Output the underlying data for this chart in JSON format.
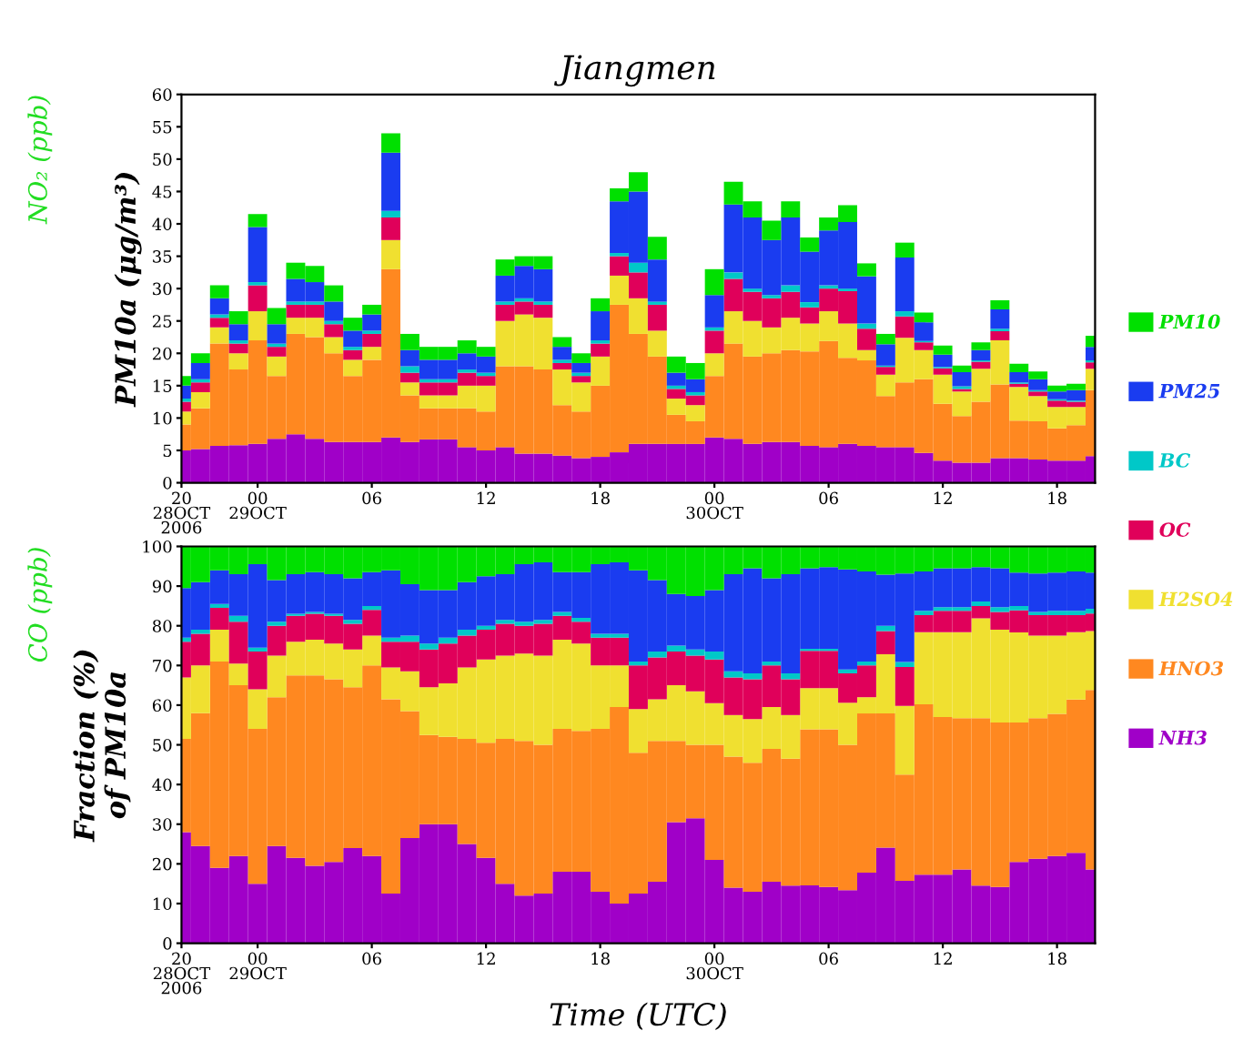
{
  "chart_data": [
    {
      "type": "bar",
      "stacked": true,
      "title": "Jiangmen",
      "ylabel": "PM10a (μg/m³)",
      "legend": "right",
      "annotations": [
        "NO₂ (ppb)"
      ],
      "x": [
        "2006-10-28T20:00",
        "2006-10-28T21:00",
        "2006-10-28T22:00",
        "2006-10-28T23:00",
        "2006-10-29T00:00",
        "2006-10-29T01:00",
        "2006-10-29T02:00",
        "2006-10-29T03:00",
        "2006-10-29T04:00",
        "2006-10-29T05:00",
        "2006-10-29T06:00",
        "2006-10-29T07:00",
        "2006-10-29T08:00",
        "2006-10-29T09:00",
        "2006-10-29T10:00",
        "2006-10-29T11:00",
        "2006-10-29T12:00",
        "2006-10-29T13:00",
        "2006-10-29T14:00",
        "2006-10-29T15:00",
        "2006-10-29T16:00",
        "2006-10-29T17:00",
        "2006-10-29T18:00",
        "2006-10-29T19:00",
        "2006-10-29T20:00",
        "2006-10-29T21:00",
        "2006-10-29T22:00",
        "2006-10-29T23:00",
        "2006-10-30T00:00",
        "2006-10-30T01:00",
        "2006-10-30T02:00",
        "2006-10-30T03:00",
        "2006-10-30T04:00",
        "2006-10-30T05:00",
        "2006-10-30T06:00",
        "2006-10-30T07:00",
        "2006-10-30T08:00",
        "2006-10-30T09:00",
        "2006-10-30T10:00",
        "2006-10-30T11:00",
        "2006-10-30T12:00",
        "2006-10-30T13:00",
        "2006-10-30T14:00",
        "2006-10-30T15:00",
        "2006-10-30T16:00",
        "2006-10-30T17:00",
        "2006-10-30T18:00",
        "2006-10-30T19:00",
        "2006-10-30T20:00"
      ],
      "xlim": [
        "2006-10-28T20:00",
        "2006-10-30T20:00"
      ],
      "xticks": [
        {
          "value": "2006-10-28T20:00",
          "label": "20\n28OCT\n2006"
        },
        {
          "value": "2006-10-29T00:00",
          "label": "00\n29OCT"
        },
        {
          "value": "2006-10-29T06:00",
          "label": "06"
        },
        {
          "value": "2006-10-29T12:00",
          "label": "12"
        },
        {
          "value": "2006-10-29T18:00",
          "label": "18"
        },
        {
          "value": "2006-10-30T00:00",
          "label": "00\n30OCT"
        },
        {
          "value": "2006-10-30T06:00",
          "label": "06"
        },
        {
          "value": "2006-10-30T12:00",
          "label": "12"
        },
        {
          "value": "2006-10-30T18:00",
          "label": "18"
        }
      ],
      "ylim": [
        0,
        60
      ],
      "yticks": [
        0,
        5,
        10,
        15,
        20,
        25,
        30,
        35,
        40,
        45,
        50,
        55,
        60
      ],
      "series": [
        {
          "name": "NH3",
          "color": "#a000c8",
          "values": [
            5,
            5.2,
            5.7,
            5.8,
            6,
            6.8,
            7.5,
            6.8,
            6.3,
            6.3,
            6.3,
            7,
            6.3,
            6.7,
            6.7,
            5.5,
            5,
            5.5,
            4.5,
            4.5,
            4.2,
            3.8,
            4,
            4.7,
            6,
            6,
            6,
            6,
            7,
            6.8,
            6,
            6.3,
            6.3,
            5.7,
            5.5,
            6,
            5.7,
            5.5,
            5.5,
            4.6,
            3.4,
            3.1,
            3.1,
            3.8,
            3.8,
            3.6,
            3.4,
            3.4,
            4.1
          ]
        },
        {
          "name": "HNO3",
          "color": "#ff8820",
          "values": [
            4,
            6.3,
            15.8,
            11.7,
            16,
            9.7,
            15.5,
            15.7,
            13.7,
            10.2,
            12.7,
            26,
            7.2,
            4.8,
            4.8,
            6,
            6,
            12.5,
            13.5,
            13,
            7.8,
            7.2,
            11,
            22.8,
            17,
            13.5,
            4.5,
            3.5,
            9.5,
            14.7,
            13.5,
            13.7,
            14.2,
            14.6,
            16.4,
            13.3,
            13.2,
            7.9,
            10,
            11.4,
            8.8,
            7.2,
            9.4,
            11.4,
            5.8,
            5.9,
            5,
            5.5,
            10.2
          ]
        },
        {
          "name": "H2SO4",
          "color": "#f0e030",
          "values": [
            2,
            2.5,
            2.5,
            2.5,
            4.5,
            3,
            2.5,
            3,
            2.5,
            2.5,
            2,
            4.5,
            2,
            2,
            2,
            3.5,
            4,
            7,
            8,
            8,
            5.5,
            4.5,
            4.5,
            4.5,
            5.5,
            4,
            2.5,
            2.5,
            3.5,
            5,
            5.5,
            4,
            5,
            4.3,
            4.6,
            5.3,
            1.6,
            3.3,
            6.9,
            4.5,
            4.5,
            3.8,
            5.1,
            6.8,
            5.2,
            3.9,
            3.3,
            2.8,
            3.3
          ]
        },
        {
          "name": "OC",
          "color": "#e0005a",
          "values": [
            1.5,
            1.5,
            1.5,
            1.5,
            4,
            1.5,
            2,
            2,
            2,
            1.5,
            2,
            3.5,
            1.5,
            2,
            2,
            2,
            1.5,
            2.5,
            2,
            2,
            1,
            1,
            2,
            3,
            4,
            4,
            1.5,
            1.5,
            3.5,
            5,
            4.5,
            4.5,
            4,
            2.5,
            3.5,
            5,
            3.3,
            1.2,
            3.3,
            1.2,
            1,
            0.4,
            1.1,
            1.4,
            0.5,
            0.7,
            1,
            0.8,
            1
          ]
        },
        {
          "name": "BC",
          "color": "#00c8c8",
          "values": [
            0.5,
            0.5,
            0.5,
            0.5,
            0.5,
            0.5,
            0.5,
            0.5,
            0.5,
            0.5,
            0.5,
            1,
            1,
            0.5,
            0.5,
            0.5,
            0.5,
            0.5,
            0.5,
            0.5,
            0.5,
            0.5,
            0.5,
            0.5,
            1.5,
            0.5,
            0.5,
            0.5,
            0.5,
            1,
            0.5,
            0.5,
            1,
            0.8,
            0.5,
            0.4,
            0.8,
            0.2,
            0.8,
            0.2,
            0.2,
            0.4,
            0.2,
            0.4,
            0.2,
            0.2,
            0.2,
            0.2,
            0.3
          ]
        },
        {
          "name": "PM25",
          "color": "#1a3cf0",
          "values": [
            2,
            2.5,
            2.5,
            2.5,
            8.5,
            3,
            3.5,
            3,
            3,
            2.5,
            2.5,
            9,
            2.5,
            3,
            3,
            2.5,
            2.5,
            4,
            5,
            5,
            2,
            1.5,
            4.5,
            8,
            11,
            6.5,
            2,
            2,
            5,
            10.5,
            11,
            8.5,
            10.5,
            7.8,
            8.5,
            10.3,
            7.3,
            3.3,
            8.3,
            2.9,
            1.9,
            2.2,
            1.6,
            3,
            1.6,
            1.7,
            1.2,
            1.6,
            2.1
          ]
        },
        {
          "name": "PM10",
          "color": "#00e000",
          "values": [
            1.5,
            1.5,
            2,
            2,
            2,
            2.5,
            2.5,
            2.5,
            2.5,
            2,
            1.5,
            3,
            2.5,
            2,
            2,
            2,
            1.5,
            2.5,
            1.5,
            2,
            1.5,
            1.5,
            2,
            2,
            3,
            3.5,
            2.5,
            2.5,
            4,
            3.5,
            2.5,
            3,
            2.5,
            2.2,
            2,
            2.6,
            2,
            1.6,
            2.3,
            1.5,
            1.4,
            1,
            1.2,
            1.4,
            1.3,
            1.2,
            0.9,
            1,
            1.7
          ]
        }
      ]
    },
    {
      "type": "bar",
      "stacked": true,
      "ylabel": "Fraction (%)\nof PM10a",
      "xlabel": "Time (UTC)",
      "annotations": [
        "CO (ppb)"
      ],
      "x": [
        "2006-10-28T20:00",
        "2006-10-28T21:00",
        "2006-10-28T22:00",
        "2006-10-28T23:00",
        "2006-10-29T00:00",
        "2006-10-29T01:00",
        "2006-10-29T02:00",
        "2006-10-29T03:00",
        "2006-10-29T04:00",
        "2006-10-29T05:00",
        "2006-10-29T06:00",
        "2006-10-29T07:00",
        "2006-10-29T08:00",
        "2006-10-29T09:00",
        "2006-10-29T10:00",
        "2006-10-29T11:00",
        "2006-10-29T12:00",
        "2006-10-29T13:00",
        "2006-10-29T14:00",
        "2006-10-29T15:00",
        "2006-10-29T16:00",
        "2006-10-29T17:00",
        "2006-10-29T18:00",
        "2006-10-29T19:00",
        "2006-10-29T20:00",
        "2006-10-29T21:00",
        "2006-10-29T22:00",
        "2006-10-29T23:00",
        "2006-10-30T00:00",
        "2006-10-30T01:00",
        "2006-10-30T02:00",
        "2006-10-30T03:00",
        "2006-10-30T04:00",
        "2006-10-30T05:00",
        "2006-10-30T06:00",
        "2006-10-30T07:00",
        "2006-10-30T08:00",
        "2006-10-30T09:00",
        "2006-10-30T10:00",
        "2006-10-30T11:00",
        "2006-10-30T12:00",
        "2006-10-30T13:00",
        "2006-10-30T14:00",
        "2006-10-30T15:00",
        "2006-10-30T16:00",
        "2006-10-30T17:00",
        "2006-10-30T18:00",
        "2006-10-30T19:00",
        "2006-10-30T20:00"
      ],
      "xlim": [
        "2006-10-28T20:00",
        "2006-10-30T20:00"
      ],
      "xticks": [
        {
          "value": "2006-10-28T20:00",
          "label": "20\n28OCT\n2006"
        },
        {
          "value": "2006-10-29T00:00",
          "label": "00\n29OCT"
        },
        {
          "value": "2006-10-29T06:00",
          "label": "06"
        },
        {
          "value": "2006-10-29T12:00",
          "label": "12"
        },
        {
          "value": "2006-10-29T18:00",
          "label": "18"
        },
        {
          "value": "2006-10-30T00:00",
          "label": "00\n30OCT"
        },
        {
          "value": "2006-10-30T06:00",
          "label": "06"
        },
        {
          "value": "2006-10-30T12:00",
          "label": "12"
        },
        {
          "value": "2006-10-30T18:00",
          "label": "18"
        }
      ],
      "ylim": [
        0,
        100
      ],
      "yticks": [
        0,
        10,
        20,
        30,
        40,
        50,
        60,
        70,
        80,
        90,
        100
      ],
      "series": [
        {
          "color": "#a000c8",
          "values": [
            28,
            24.5,
            19,
            22,
            15,
            24.5,
            21.5,
            19.5,
            20.5,
            24,
            22,
            12.5,
            26.5,
            30,
            30,
            25,
            21.5,
            15,
            12,
            12.5,
            18,
            18,
            13,
            10,
            12.5,
            15.5,
            30.5,
            31.5,
            21,
            14,
            13,
            15.5,
            14.5,
            14.6,
            14.2,
            13.4,
            17.8,
            24.1,
            15.7,
            17.3,
            17.3,
            18.6,
            14.5,
            14.2,
            20.5,
            21.3,
            22,
            22.8,
            18.6
          ]
        },
        {
          "color": "#ff8820",
          "values": [
            23.5,
            33.5,
            52,
            43,
            39,
            37.5,
            46,
            48,
            46,
            40.5,
            48,
            49,
            32,
            22.5,
            22,
            26.5,
            29,
            36.5,
            39,
            37.5,
            36,
            35.5,
            41,
            49.5,
            35.5,
            35.5,
            20.5,
            18.5,
            29,
            33,
            32.5,
            33.5,
            32,
            39.3,
            39.7,
            36.6,
            40.1,
            33.8,
            26.8,
            42.9,
            39.7,
            38.1,
            42.2,
            41.4,
            35.1,
            35.4,
            35.8,
            38.6,
            45.2
          ]
        },
        {
          "color": "#f0e030",
          "values": [
            15.5,
            12,
            8,
            5.5,
            10,
            10.5,
            8.5,
            9,
            9,
            9.5,
            7.5,
            8,
            10,
            12,
            13.5,
            18,
            21,
            21,
            22,
            22.5,
            22.5,
            22,
            16,
            10.5,
            11,
            10.5,
            14,
            13.5,
            10.5,
            10.5,
            11,
            10.5,
            11,
            10.4,
            10.4,
            10.6,
            4.1,
            14.9,
            17.3,
            18.2,
            21.4,
            21.7,
            25.2,
            23.4,
            22.7,
            20.8,
            19.7,
            17,
            14.9
          ]
        },
        {
          "color": "#e0005a",
          "values": [
            9,
            8,
            5.5,
            10.5,
            9.5,
            7.5,
            6.5,
            6.5,
            7,
            6.5,
            6.5,
            6.5,
            7.5,
            9.5,
            10,
            8,
            7.5,
            8,
            7,
            8,
            6,
            5.5,
            7,
            7,
            11,
            10.5,
            8.5,
            9,
            11,
            9.5,
            10,
            10.5,
            9,
            9.4,
            9.4,
            7.4,
            8,
            5.9,
            9.8,
            4.3,
            5.4,
            5.4,
            3.1,
            4.5,
            5.6,
            5.2,
            5.2,
            4.3,
            4.4
          ]
        },
        {
          "color": "#00c8c8",
          "values": [
            1,
            1,
            1,
            1.5,
            1,
            1,
            0.5,
            0.5,
            0.5,
            1,
            1,
            1,
            1.5,
            1.5,
            1.5,
            1.5,
            1,
            1,
            1,
            1,
            1,
            1,
            1,
            1,
            1,
            1.5,
            1.5,
            1.5,
            2,
            1.5,
            1.5,
            1,
            1.5,
            0.5,
            0.5,
            1,
            1,
            1.3,
            1.3,
            1.1,
            0.9,
            0.9,
            1.1,
            1.2,
            1.1,
            0.8,
            1.1,
            1.1,
            1.2
          ]
        },
        {
          "color": "#1a3cf0",
          "values": [
            12.5,
            12,
            8.5,
            10.5,
            21,
            10.5,
            10,
            10,
            10,
            10.5,
            8.5,
            17,
            13,
            13.5,
            12,
            12,
            12.5,
            11.5,
            14.5,
            14.5,
            10,
            11.5,
            17.5,
            18,
            23,
            18,
            13,
            13.5,
            15.5,
            24.5,
            26.5,
            21,
            25,
            20.3,
            20.6,
            25.2,
            22.7,
            12.9,
            22.3,
            9.9,
            9.8,
            9.8,
            8.7,
            9.8,
            8.4,
            9.7,
            9.6,
            9.9,
            9.1
          ]
        },
        {
          "color": "#00e000",
          "values": [
            10.5,
            9,
            6,
            7,
            4.5,
            8.5,
            7,
            6.5,
            7,
            8,
            6.5,
            6,
            9.5,
            11,
            11,
            9,
            7.5,
            7,
            4.5,
            4,
            6.5,
            6.5,
            4.5,
            4,
            6,
            8.5,
            12,
            12.5,
            11,
            7,
            5.5,
            8,
            7,
            5.5,
            5.2,
            5.8,
            6.3,
            7.1,
            6.8,
            6.3,
            5.5,
            5.5,
            5.2,
            5.5,
            6.6,
            6.8,
            6.6,
            6.3,
            6.6
          ]
        }
      ]
    }
  ]
}
